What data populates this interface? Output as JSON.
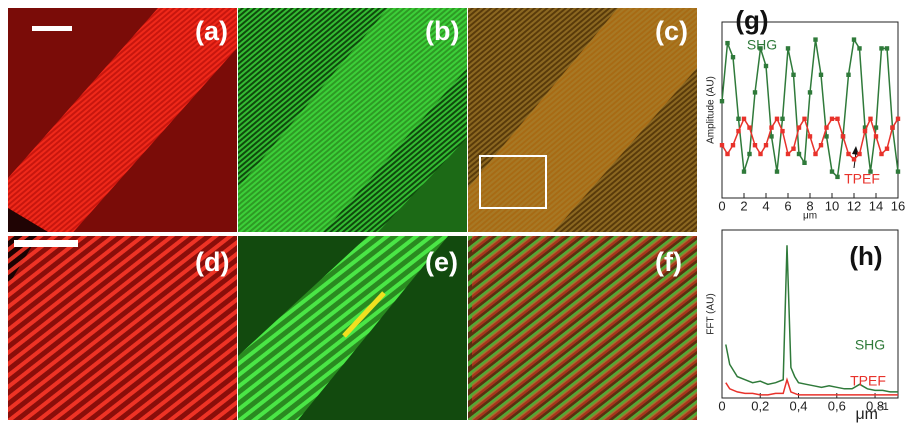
{
  "panels": [
    "(a)",
    "(b)",
    "(c)",
    "(d)",
    "(e)",
    "(f)"
  ],
  "chart_data": [
    {
      "type": "line",
      "label": "(g)",
      "ylabel": "Amplitude (AU)",
      "xlabel": "μm",
      "x": [
        0,
        0.5,
        1,
        1.5,
        2,
        2.5,
        3,
        3.5,
        4,
        4.5,
        5,
        5.5,
        6,
        6.5,
        7,
        7.5,
        8,
        8.5,
        9,
        9.5,
        10,
        10.5,
        11,
        11.5,
        12,
        12.5,
        13,
        13.5,
        14,
        14.5,
        15,
        15.5,
        16
      ],
      "series": [
        {
          "name": "SHG",
          "color": "#2f7a3a",
          "values": [
            0.55,
            0.88,
            0.8,
            0.45,
            0.15,
            0.25,
            0.6,
            0.85,
            0.75,
            0.35,
            0.15,
            0.45,
            0.85,
            0.7,
            0.25,
            0.2,
            0.6,
            0.9,
            0.7,
            0.35,
            0.15,
            0.12,
            0.35,
            0.7,
            0.9,
            0.85,
            0.4,
            0.15,
            0.4,
            0.85,
            0.85,
            0.4,
            0.15
          ]
        },
        {
          "name": "TPEF",
          "color": "#e8322b",
          "values": [
            0.3,
            0.25,
            0.3,
            0.38,
            0.45,
            0.4,
            0.3,
            0.25,
            0.3,
            0.4,
            0.45,
            0.38,
            0.25,
            0.28,
            0.4,
            0.45,
            0.35,
            0.25,
            0.3,
            0.4,
            0.45,
            0.45,
            0.35,
            0.25,
            0.22,
            0.25,
            0.38,
            0.45,
            0.35,
            0.25,
            0.28,
            0.4,
            0.45
          ]
        }
      ],
      "xlim": [
        0,
        16
      ],
      "xticks": [
        0,
        2,
        4,
        6,
        8,
        10,
        12,
        14,
        16
      ],
      "ylim": [
        0,
        1
      ],
      "markers": true
    },
    {
      "type": "line",
      "label": "(h)",
      "ylabel": "FFT (AU)",
      "xlabel": "μm",
      "xlabel_sup": "-1",
      "x": [
        0.02,
        0.04,
        0.08,
        0.12,
        0.16,
        0.2,
        0.24,
        0.28,
        0.32,
        0.34,
        0.36,
        0.38,
        0.4,
        0.44,
        0.48,
        0.52,
        0.56,
        0.6,
        0.64,
        0.68,
        0.72,
        0.76,
        0.8,
        0.84,
        0.88,
        0.92
      ],
      "series": [
        {
          "name": "SHG",
          "color": "#2f7a3a",
          "values": [
            0.35,
            0.22,
            0.14,
            0.12,
            0.1,
            0.11,
            0.09,
            0.1,
            0.12,
            1.0,
            0.2,
            0.14,
            0.1,
            0.09,
            0.08,
            0.07,
            0.08,
            0.07,
            0.06,
            0.06,
            0.09,
            0.06,
            0.05,
            0.05,
            0.04,
            0.04
          ]
        },
        {
          "name": "TPEF",
          "color": "#e8322b",
          "values": [
            0.1,
            0.06,
            0.04,
            0.03,
            0.03,
            0.02,
            0.02,
            0.03,
            0.03,
            0.12,
            0.04,
            0.03,
            0.02,
            0.02,
            0.02,
            0.02,
            0.02,
            0.02,
            0.02,
            0.02,
            0.02,
            0.02,
            0.02,
            0.02,
            0.02,
            0.02
          ]
        }
      ],
      "xlim": [
        0,
        0.92
      ],
      "xticks": [
        0,
        {
          "value": 0.2,
          "label": "0,2"
        },
        {
          "value": 0.4,
          "label": "0,4"
        },
        {
          "value": 0.6,
          "label": "0,6"
        },
        {
          "value": 0.8,
          "label": "0,8"
        }
      ],
      "ylim": [
        0,
        1.1
      ],
      "markers": false
    }
  ]
}
